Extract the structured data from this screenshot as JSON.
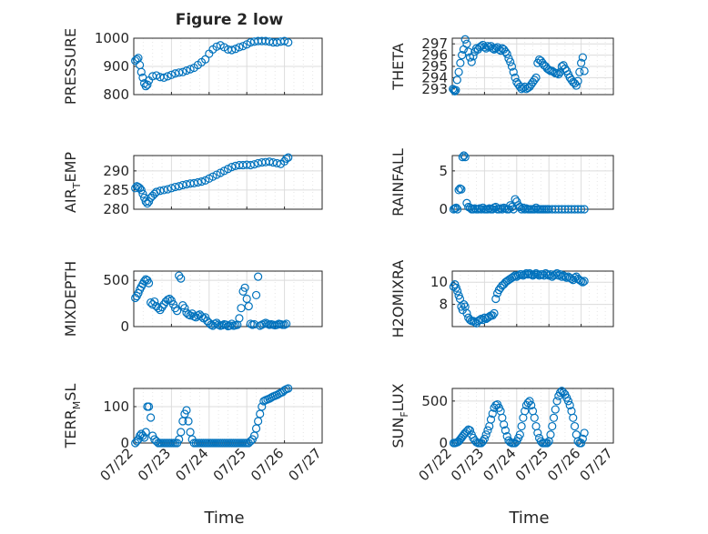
{
  "figure": {
    "title": "Figure 2 low",
    "marker_color": "#0072BD",
    "grid": true,
    "x_axis": {
      "label": "Time",
      "min": "07/22",
      "max": "07/27",
      "tick_labels": [
        "07/22",
        "07/23",
        "07/24",
        "07/25",
        "07/26",
        "07/27"
      ]
    }
  },
  "chart_data": [
    {
      "type": "scatter",
      "ylabel": "PRESSURE",
      "ylim": [
        800,
        1000
      ],
      "yticks": [
        800,
        900,
        1000
      ],
      "ytick_labels": [
        "800",
        "900",
        "1000"
      ],
      "x": [
        0.04,
        0.08,
        0.12,
        0.16,
        0.2,
        0.24,
        0.28,
        0.32,
        0.36,
        0.4,
        0.5,
        0.6,
        0.7,
        0.8,
        0.9,
        1.0,
        1.1,
        1.2,
        1.3,
        1.4,
        1.5,
        1.6,
        1.7,
        1.8,
        1.9,
        2.0,
        2.1,
        2.2,
        2.3,
        2.4,
        2.5,
        2.6,
        2.7,
        2.8,
        2.9,
        3.0,
        3.1,
        3.2,
        3.3,
        3.4,
        3.5,
        3.6,
        3.7,
        3.8,
        3.9,
        4.0,
        4.1
      ],
      "y": [
        920,
        925,
        930,
        905,
        880,
        860,
        840,
        830,
        835,
        850,
        865,
        868,
        862,
        860,
        865,
        870,
        875,
        878,
        880,
        885,
        890,
        895,
        905,
        915,
        925,
        945,
        960,
        970,
        975,
        968,
        960,
        958,
        962,
        968,
        972,
        978,
        985,
        988,
        990,
        990,
        990,
        988,
        985,
        985,
        988,
        990,
        985
      ]
    },
    {
      "type": "scatter",
      "ylabel": "THETA",
      "ylim": [
        292.5,
        297.5
      ],
      "yticks": [
        293,
        294,
        295,
        296,
        297
      ],
      "ytick_labels": [
        "293",
        "294",
        "295",
        "296",
        "297"
      ],
      "x": [
        0.02,
        0.05,
        0.08,
        0.11,
        0.15,
        0.2,
        0.25,
        0.3,
        0.35,
        0.4,
        0.45,
        0.5,
        0.55,
        0.6,
        0.65,
        0.7,
        0.75,
        0.8,
        0.85,
        0.9,
        0.95,
        1.0,
        1.05,
        1.1,
        1.15,
        1.2,
        1.25,
        1.3,
        1.35,
        1.4,
        1.45,
        1.5,
        1.55,
        1.6,
        1.65,
        1.7,
        1.75,
        1.8,
        1.85,
        1.9,
        1.95,
        2.0,
        2.05,
        2.1,
        2.15,
        2.2,
        2.25,
        2.3,
        2.35,
        2.4,
        2.45,
        2.5,
        2.55,
        2.6,
        2.65,
        2.7,
        2.75,
        2.8,
        2.85,
        2.9,
        2.95,
        3.0,
        3.05,
        3.1,
        3.15,
        3.2,
        3.25,
        3.3,
        3.35,
        3.4,
        3.45,
        3.5,
        3.55,
        3.6,
        3.65,
        3.7,
        3.75,
        3.8,
        3.85,
        3.9,
        3.95,
        4.0,
        4.05,
        4.1
      ],
      "y": [
        293,
        292.9,
        292.8,
        292.9,
        293.8,
        294.5,
        295.3,
        296,
        296.5,
        297.4,
        297,
        296.3,
        295.8,
        295.4,
        295.9,
        296.3,
        296.6,
        296.5,
        296.7,
        296.8,
        296.9,
        296.7,
        296.6,
        296.8,
        296.7,
        296.8,
        296.6,
        296.5,
        296.6,
        296.7,
        296.5,
        296.4,
        296.6,
        296.5,
        296.3,
        296.1,
        295.7,
        295.4,
        295.0,
        294.5,
        294,
        293.6,
        293.4,
        293.2,
        293.0,
        293.1,
        293.2,
        293.0,
        293.1,
        293.2,
        293.4,
        293.6,
        293.8,
        294.0,
        295.3,
        295.6,
        295.5,
        295.3,
        295.1,
        295.0,
        294.8,
        294.7,
        294.6,
        294.6,
        294.5,
        294.4,
        294.4,
        294.3,
        294.5,
        295.0,
        295.1,
        294.8,
        294.6,
        294.3,
        294.0,
        293.8,
        293.6,
        293.5,
        293.3,
        293.7,
        294.5,
        295.3,
        295.8,
        294.6
      ]
    },
    {
      "type": "scatter",
      "ylabel": "AIR_TEMP",
      "ylabel_main": "AIR",
      "ylabel_sub": "T",
      "ylabel_tail": "EMP",
      "ylim": [
        280,
        294
      ],
      "yticks": [
        280,
        285,
        290
      ],
      "ytick_labels": [
        "280",
        "285",
        "290"
      ],
      "x": [
        0.04,
        0.08,
        0.12,
        0.16,
        0.2,
        0.24,
        0.28,
        0.32,
        0.36,
        0.4,
        0.45,
        0.5,
        0.55,
        0.6,
        0.7,
        0.8,
        0.9,
        1.0,
        1.1,
        1.2,
        1.3,
        1.4,
        1.5,
        1.6,
        1.7,
        1.8,
        1.9,
        2.0,
        2.1,
        2.2,
        2.3,
        2.4,
        2.5,
        2.6,
        2.7,
        2.8,
        2.9,
        3.0,
        3.1,
        3.2,
        3.3,
        3.4,
        3.5,
        3.6,
        3.7,
        3.8,
        3.9,
        4.0,
        4.05,
        4.1
      ],
      "y": [
        285.5,
        286,
        285.8,
        285.5,
        285,
        284,
        283,
        282,
        281.5,
        282,
        283,
        283.5,
        284,
        284.5,
        284.8,
        285,
        285.2,
        285.5,
        285.8,
        286,
        286.3,
        286.5,
        286.7,
        286.8,
        287,
        287.2,
        287.5,
        288,
        288.5,
        289,
        289.5,
        290,
        290.5,
        291,
        291.3,
        291.5,
        291.5,
        291.6,
        291.5,
        291.7,
        292,
        292.2,
        292.3,
        292.4,
        292.2,
        292,
        291.8,
        292.5,
        293.2,
        293.5
      ]
    },
    {
      "type": "scatter",
      "ylabel": "RAINFALL",
      "ylim": [
        0,
        7
      ],
      "yticks": [
        0,
        5
      ],
      "ytick_labels": [
        "0",
        "5"
      ],
      "x": [
        0.04,
        0.08,
        0.12,
        0.16,
        0.2,
        0.24,
        0.28,
        0.32,
        0.36,
        0.4,
        0.45,
        0.5,
        0.55,
        0.6,
        0.65,
        0.7,
        0.75,
        0.8,
        0.85,
        0.9,
        0.95,
        1.0,
        1.05,
        1.1,
        1.15,
        1.2,
        1.25,
        1.3,
        1.35,
        1.4,
        1.45,
        1.5,
        1.55,
        1.6,
        1.65,
        1.7,
        1.75,
        1.8,
        1.85,
        1.9,
        1.95,
        2.0,
        2.05,
        2.1,
        2.15,
        2.2,
        2.25,
        2.3,
        2.35,
        2.4,
        2.45,
        2.5,
        2.55,
        2.6,
        2.65,
        2.7,
        2.75,
        2.8,
        2.85,
        2.9,
        2.95,
        3.0,
        3.1,
        3.2,
        3.3,
        3.4,
        3.5,
        3.6,
        3.7,
        3.8,
        3.9,
        4.0,
        4.1
      ],
      "y": [
        0,
        0.1,
        0.2,
        0,
        2.5,
        2.7,
        2.6,
        6.8,
        7,
        6.8,
        0.8,
        0.3,
        0.2,
        0,
        0,
        0.1,
        0,
        0,
        0.1,
        0,
        0.2,
        0,
        0,
        0,
        0.1,
        0,
        0,
        0.2,
        0.3,
        0,
        0,
        0.1,
        0,
        0.2,
        0.1,
        0,
        0,
        0.5,
        0.3,
        0,
        1.3,
        1,
        0.5,
        0.3,
        0,
        0.2,
        0,
        0.1,
        0,
        0,
        0,
        0,
        0,
        0.2,
        0,
        0,
        0,
        0,
        0,
        0,
        0,
        0,
        0,
        0,
        0,
        0,
        0,
        0,
        0,
        0,
        0,
        0,
        0
      ]
    },
    {
      "type": "scatter",
      "ylabel": "MIXDEPTH",
      "ylim": [
        0,
        600
      ],
      "yticks": [
        0,
        500
      ],
      "ytick_labels": [
        "0",
        "500"
      ],
      "x": [
        0.04,
        0.08,
        0.12,
        0.16,
        0.2,
        0.24,
        0.28,
        0.32,
        0.36,
        0.4,
        0.45,
        0.5,
        0.55,
        0.6,
        0.65,
        0.7,
        0.75,
        0.8,
        0.85,
        0.9,
        0.95,
        1.0,
        1.05,
        1.1,
        1.15,
        1.2,
        1.25,
        1.3,
        1.35,
        1.4,
        1.45,
        1.5,
        1.55,
        1.6,
        1.65,
        1.7,
        1.75,
        1.8,
        1.85,
        1.9,
        1.95,
        2.0,
        2.05,
        2.1,
        2.15,
        2.2,
        2.25,
        2.3,
        2.35,
        2.4,
        2.45,
        2.5,
        2.55,
        2.6,
        2.65,
        2.7,
        2.75,
        2.8,
        2.85,
        2.9,
        2.95,
        3.0,
        3.05,
        3.1,
        3.15,
        3.2,
        3.25,
        3.3,
        3.35,
        3.4,
        3.45,
        3.5,
        3.55,
        3.6,
        3.65,
        3.7,
        3.75,
        3.8,
        3.85,
        3.9,
        3.95,
        4.0,
        4.05
      ],
      "y": [
        310,
        330,
        360,
        400,
        430,
        460,
        490,
        510,
        500,
        470,
        260,
        240,
        270,
        220,
        200,
        180,
        210,
        240,
        270,
        290,
        300,
        280,
        240,
        200,
        170,
        550,
        520,
        230,
        200,
        150,
        130,
        120,
        140,
        110,
        100,
        120,
        130,
        110,
        90,
        100,
        60,
        40,
        20,
        10,
        30,
        40,
        20,
        10,
        15,
        25,
        20,
        5,
        10,
        30,
        10,
        15,
        20,
        90,
        200,
        380,
        420,
        300,
        220,
        30,
        20,
        25,
        340,
        540,
        10,
        20,
        30,
        40,
        30,
        20,
        25,
        20,
        15,
        20,
        30,
        25,
        20,
        20,
        30
      ]
    },
    {
      "type": "scatter",
      "ylabel": "H2OMIXRA",
      "ylim": [
        6,
        11
      ],
      "yticks": [
        8,
        10
      ],
      "ytick_labels": [
        "8",
        "10"
      ],
      "x": [
        0.04,
        0.08,
        0.12,
        0.16,
        0.2,
        0.24,
        0.28,
        0.32,
        0.36,
        0.4,
        0.45,
        0.5,
        0.55,
        0.6,
        0.65,
        0.7,
        0.75,
        0.8,
        0.85,
        0.9,
        0.95,
        1.0,
        1.05,
        1.1,
        1.15,
        1.2,
        1.25,
        1.3,
        1.35,
        1.4,
        1.45,
        1.5,
        1.55,
        1.6,
        1.65,
        1.7,
        1.75,
        1.8,
        1.85,
        1.9,
        1.95,
        2.0,
        2.05,
        2.1,
        2.15,
        2.2,
        2.25,
        2.3,
        2.35,
        2.4,
        2.45,
        2.5,
        2.55,
        2.6,
        2.65,
        2.7,
        2.75,
        2.8,
        2.85,
        2.9,
        2.95,
        3.0,
        3.05,
        3.1,
        3.15,
        3.2,
        3.25,
        3.3,
        3.35,
        3.4,
        3.45,
        3.5,
        3.55,
        3.6,
        3.65,
        3.7,
        3.75,
        3.8,
        3.85,
        3.9,
        3.95,
        4.0,
        4.05,
        4.1
      ],
      "y": [
        9.6,
        9.8,
        9.5,
        9.2,
        8.8,
        8.5,
        7.8,
        7.5,
        8.0,
        7.8,
        7.2,
        6.8,
        6.6,
        6.5,
        6.5,
        6.4,
        6.3,
        6.5,
        6.6,
        6.7,
        6.6,
        6.8,
        6.7,
        6.8,
        6.9,
        7.0,
        7.0,
        7.2,
        8.5,
        9.0,
        9.3,
        9.5,
        9.7,
        9.8,
        10.0,
        10.1,
        10.2,
        10.3,
        10.4,
        10.5,
        10.6,
        10.5,
        10.6,
        10.7,
        10.7,
        10.6,
        10.7,
        10.8,
        10.7,
        10.8,
        10.7,
        10.6,
        10.7,
        10.8,
        10.7,
        10.6,
        10.7,
        10.7,
        10.6,
        10.8,
        10.7,
        10.6,
        10.7,
        10.5,
        10.6,
        10.7,
        10.8,
        10.6,
        10.7,
        10.5,
        10.6,
        10.5,
        10.4,
        10.5,
        10.4,
        10.3,
        10.2,
        10.4,
        10.5,
        10.3,
        10.2,
        10.1,
        10.0,
        10.1
      ]
    },
    {
      "type": "scatter",
      "ylabel": "TERR_MSL",
      "ylabel_main": "TERR",
      "ylabel_sub": "M",
      "ylabel_tail": "SL",
      "ylim": [
        0,
        150
      ],
      "yticks": [
        0,
        100
      ],
      "ytick_labels": [
        "0",
        "100"
      ],
      "x": [
        0.04,
        0.08,
        0.12,
        0.16,
        0.2,
        0.24,
        0.28,
        0.32,
        0.36,
        0.4,
        0.45,
        0.5,
        0.55,
        0.6,
        0.65,
        0.7,
        0.75,
        0.8,
        0.85,
        0.9,
        0.95,
        1.0,
        1.05,
        1.1,
        1.15,
        1.2,
        1.25,
        1.3,
        1.35,
        1.4,
        1.45,
        1.5,
        1.55,
        1.6,
        1.65,
        1.7,
        1.75,
        1.8,
        1.85,
        1.9,
        1.95,
        2.0,
        2.05,
        2.1,
        2.15,
        2.2,
        2.25,
        2.3,
        2.35,
        2.4,
        2.45,
        2.5,
        2.55,
        2.6,
        2.65,
        2.7,
        2.75,
        2.8,
        2.85,
        2.9,
        2.95,
        3.0,
        3.05,
        3.1,
        3.15,
        3.2,
        3.25,
        3.3,
        3.35,
        3.4,
        3.45,
        3.5,
        3.55,
        3.6,
        3.65,
        3.7,
        3.75,
        3.8,
        3.85,
        3.9,
        3.95,
        4.0,
        4.05,
        4.1
      ],
      "y": [
        0,
        5,
        10,
        20,
        25,
        20,
        15,
        30,
        100,
        100,
        70,
        20,
        10,
        5,
        0,
        0,
        0,
        0,
        0,
        0,
        0,
        0,
        0,
        0,
        0,
        10,
        30,
        60,
        80,
        90,
        60,
        30,
        10,
        0,
        0,
        0,
        0,
        0,
        0,
        0,
        0,
        0,
        0,
        0,
        0,
        0,
        0,
        0,
        0,
        0,
        0,
        0,
        0,
        0,
        0,
        0,
        0,
        0,
        0,
        0,
        0,
        0,
        0,
        5,
        10,
        20,
        40,
        60,
        80,
        100,
        115,
        118,
        120,
        122,
        125,
        128,
        130,
        132,
        135,
        138,
        140,
        145,
        148,
        150
      ]
    },
    {
      "type": "scatter",
      "ylabel": "SUN_FLUX",
      "ylabel_main": "SUN",
      "ylabel_sub": "F",
      "ylabel_tail": "LUX",
      "ylim": [
        0,
        650
      ],
      "yticks": [
        0,
        500
      ],
      "ytick_labels": [
        "0",
        "500"
      ],
      "x": [
        0.04,
        0.08,
        0.12,
        0.16,
        0.2,
        0.24,
        0.28,
        0.32,
        0.36,
        0.4,
        0.45,
        0.5,
        0.55,
        0.6,
        0.65,
        0.7,
        0.75,
        0.8,
        0.85,
        0.9,
        0.95,
        1.0,
        1.05,
        1.1,
        1.15,
        1.2,
        1.25,
        1.3,
        1.35,
        1.4,
        1.45,
        1.5,
        1.55,
        1.6,
        1.65,
        1.7,
        1.75,
        1.8,
        1.85,
        1.9,
        1.95,
        2.0,
        2.05,
        2.1,
        2.15,
        2.2,
        2.25,
        2.3,
        2.35,
        2.4,
        2.45,
        2.5,
        2.55,
        2.6,
        2.65,
        2.7,
        2.75,
        2.8,
        2.85,
        2.9,
        2.95,
        3.0,
        3.05,
        3.1,
        3.15,
        3.2,
        3.25,
        3.3,
        3.35,
        3.4,
        3.45,
        3.5,
        3.55,
        3.6,
        3.65,
        3.7,
        3.75,
        3.8,
        3.85,
        3.9,
        3.95,
        4.0,
        4.05,
        4.1
      ],
      "y": [
        0,
        0,
        5,
        10,
        20,
        40,
        60,
        80,
        100,
        120,
        140,
        160,
        150,
        100,
        60,
        30,
        10,
        0,
        0,
        0,
        20,
        50,
        100,
        150,
        200,
        280,
        350,
        420,
        450,
        460,
        420,
        380,
        300,
        220,
        150,
        80,
        30,
        10,
        0,
        0,
        0,
        20,
        60,
        100,
        200,
        300,
        380,
        450,
        480,
        500,
        450,
        380,
        300,
        200,
        120,
        60,
        20,
        0,
        0,
        0,
        0,
        20,
        100,
        200,
        300,
        400,
        500,
        560,
        600,
        620,
        600,
        580,
        540,
        500,
        450,
        380,
        300,
        200,
        100,
        20,
        0,
        0,
        50,
        120
      ]
    }
  ]
}
